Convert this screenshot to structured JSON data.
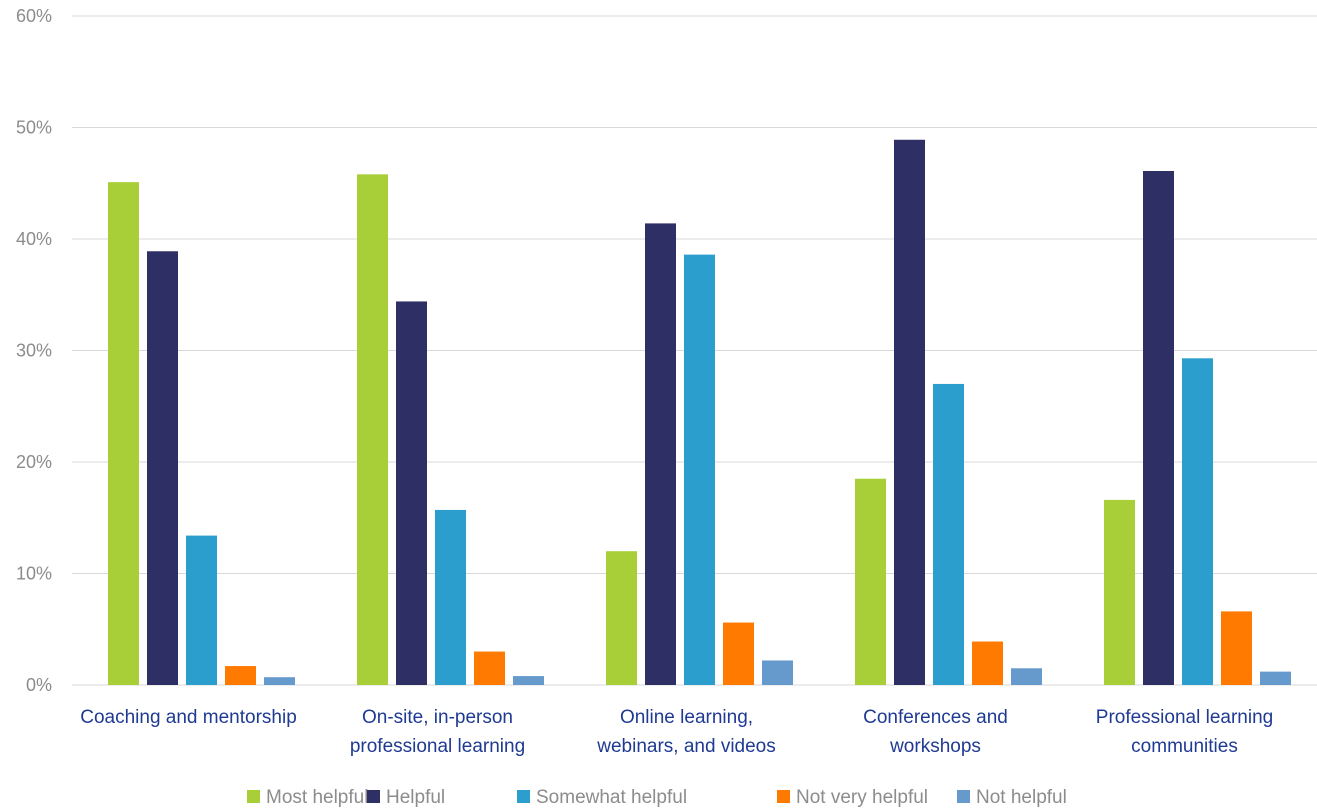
{
  "chart_data": {
    "type": "bar",
    "title": "",
    "xlabel": "",
    "ylabel": "",
    "ylim": [
      0,
      60
    ],
    "yticks": [
      0,
      10,
      20,
      30,
      40,
      50,
      60
    ],
    "ytick_labels": [
      "0%",
      "10%",
      "20%",
      "30%",
      "40%",
      "50%",
      "60%"
    ],
    "grid": true,
    "legend_position": "bottom",
    "categories": [
      [
        "Coaching and mentorship"
      ],
      [
        "On-site, in-person",
        "professional learning"
      ],
      [
        "Online learning,",
        "webinars, and videos"
      ],
      [
        "Conferences and",
        "workshops"
      ],
      [
        "Professional learning",
        "communities"
      ]
    ],
    "series": [
      {
        "name": "Most helpful",
        "color": "#a8cf38",
        "values": [
          45.1,
          45.8,
          12.0,
          18.5,
          16.6
        ]
      },
      {
        "name": "Helpful",
        "color": "#2e3065",
        "values": [
          38.9,
          34.4,
          41.4,
          48.9,
          46.1
        ]
      },
      {
        "name": "Somewhat helpful",
        "color": "#2b9ecd",
        "values": [
          13.4,
          15.7,
          38.6,
          27.0,
          29.3
        ]
      },
      {
        "name": "Not very helpful",
        "color": "#ff7a00",
        "values": [
          1.7,
          3.0,
          5.6,
          3.9,
          6.6
        ]
      },
      {
        "name": "Not helpful",
        "color": "#6699cc",
        "values": [
          0.7,
          0.8,
          2.2,
          1.5,
          1.2
        ]
      }
    ],
    "colors": {
      "grid": "#d9d9d9",
      "tick_text": "#8c8c8c",
      "category_text": "#1f3a93",
      "legend_text": "#8c8c8c"
    }
  }
}
